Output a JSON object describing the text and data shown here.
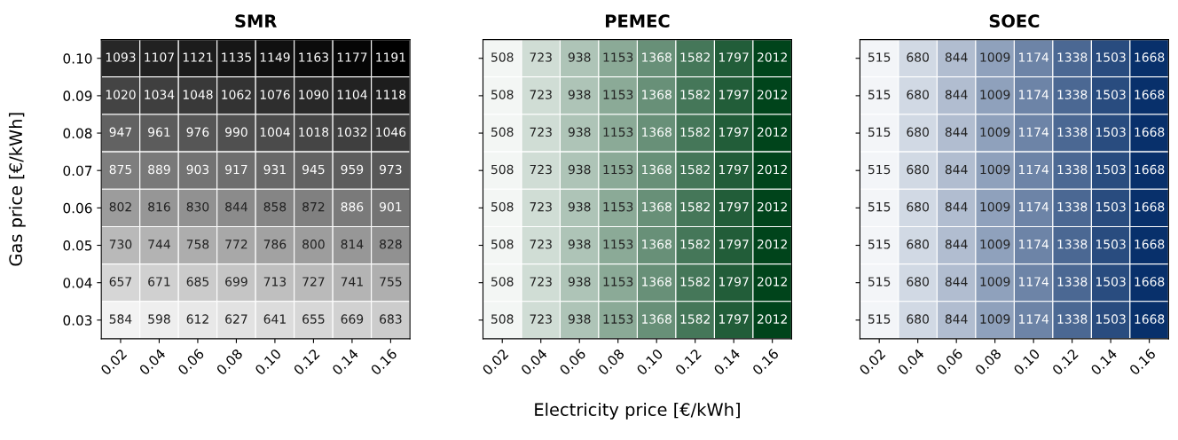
{
  "chart_data": [
    {
      "type": "heatmap",
      "title": "SMR",
      "ylabel": "Gas price [€/kWh]",
      "color": "#000000",
      "categories": [
        "0.02",
        "0.04",
        "0.06",
        "0.08",
        "0.10",
        "0.12",
        "0.14",
        "0.16"
      ],
      "y_categories": [
        "0.10",
        "0.09",
        "0.08",
        "0.07",
        "0.06",
        "0.05",
        "0.04",
        "0.03"
      ],
      "cells": [
        [
          1093,
          1107,
          1121,
          1135,
          1149,
          1163,
          1177,
          1191
        ],
        [
          1020,
          1034,
          1048,
          1062,
          1076,
          1090,
          1104,
          1118
        ],
        [
          947,
          961,
          976,
          990,
          1004,
          1018,
          1032,
          1046
        ],
        [
          875,
          889,
          903,
          917,
          931,
          945,
          959,
          973
        ],
        [
          802,
          816,
          830,
          844,
          858,
          872,
          886,
          901
        ],
        [
          730,
          744,
          758,
          772,
          786,
          800,
          814,
          828
        ],
        [
          657,
          671,
          685,
          699,
          713,
          727,
          741,
          755
        ],
        [
          584,
          598,
          612,
          627,
          641,
          655,
          669,
          683
        ]
      ],
      "data_labels": true
    },
    {
      "type": "heatmap",
      "title": "PEMEC",
      "xlabel": "Electricity price [€/kWh]",
      "color": "#00441b",
      "tick_labels": "x",
      "categories": [
        "0.02",
        "0.04",
        "0.06",
        "0.08",
        "0.10",
        "0.12",
        "0.14",
        "0.16"
      ],
      "y_categories": [
        "0.10",
        "0.09",
        "0.08",
        "0.07",
        "0.06",
        "0.05",
        "0.04",
        "0.03"
      ],
      "cells": [
        [
          508,
          723,
          938,
          1153,
          1368,
          1582,
          1797,
          2012
        ],
        [
          508,
          723,
          938,
          1153,
          1368,
          1582,
          1797,
          2012
        ],
        [
          508,
          723,
          938,
          1153,
          1368,
          1582,
          1797,
          2012
        ],
        [
          508,
          723,
          938,
          1153,
          1368,
          1582,
          1797,
          2012
        ],
        [
          508,
          723,
          938,
          1153,
          1368,
          1582,
          1797,
          2012
        ],
        [
          508,
          723,
          938,
          1153,
          1368,
          1582,
          1797,
          2012
        ],
        [
          508,
          723,
          938,
          1153,
          1368,
          1582,
          1797,
          2012
        ],
        [
          508,
          723,
          938,
          1153,
          1368,
          1582,
          1797,
          2012
        ]
      ],
      "data_labels": true
    },
    {
      "type": "heatmap",
      "title": "SOEC",
      "color": "#08306b",
      "tick_labels": "x",
      "categories": [
        "0.02",
        "0.04",
        "0.06",
        "0.08",
        "0.10",
        "0.12",
        "0.14",
        "0.16"
      ],
      "y_categories": [
        "0.10",
        "0.09",
        "0.08",
        "0.07",
        "0.06",
        "0.05",
        "0.04",
        "0.03"
      ],
      "cells": [
        [
          515,
          680,
          844,
          1009,
          1174,
          1338,
          1503,
          1668
        ],
        [
          515,
          680,
          844,
          1009,
          1174,
          1338,
          1503,
          1668
        ],
        [
          515,
          680,
          844,
          1009,
          1174,
          1338,
          1503,
          1668
        ],
        [
          515,
          680,
          844,
          1009,
          1174,
          1338,
          1503,
          1668
        ],
        [
          515,
          680,
          844,
          1009,
          1174,
          1338,
          1503,
          1668
        ],
        [
          515,
          680,
          844,
          1009,
          1174,
          1338,
          1503,
          1668
        ],
        [
          515,
          680,
          844,
          1009,
          1174,
          1338,
          1503,
          1668
        ],
        [
          515,
          680,
          844,
          1009,
          1174,
          1338,
          1503,
          1668
        ]
      ],
      "data_labels": true
    }
  ]
}
